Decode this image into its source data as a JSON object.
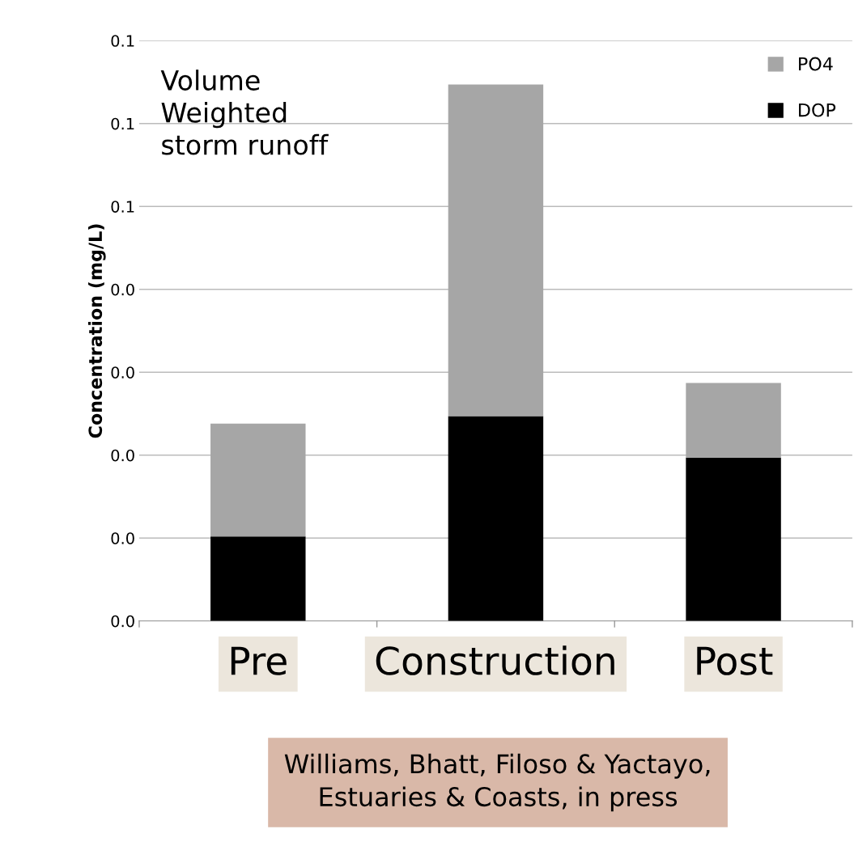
{
  "chart_data": {
    "type": "bar",
    "stacked": true,
    "ylabel": "Concentration (mg/L)",
    "categories": [
      "Pre",
      "Construction",
      "Post"
    ],
    "series": [
      {
        "name": "DOP",
        "color": "#000000",
        "values": [
          0.0102,
          0.0247,
          0.0197
        ]
      },
      {
        "name": "PO4",
        "color": "#a6a6a6",
        "values": [
          0.0136,
          0.04,
          0.009
        ]
      }
    ],
    "ylim": [
      0,
      0.07
    ],
    "yticks": [
      {
        "value": 0,
        "label": "0.0"
      },
      {
        "value": 0.01,
        "label": "0.0"
      },
      {
        "value": 0.02,
        "label": "0.0"
      },
      {
        "value": 0.03,
        "label": "0.0"
      },
      {
        "value": 0.04,
        "label": "0.0"
      },
      {
        "value": 0.05,
        "label": "0.1"
      },
      {
        "value": 0.06,
        "label": "0.1"
      },
      {
        "value": 0.07,
        "label": "0.1"
      }
    ],
    "grid": "y",
    "legend": "top right",
    "annotations": [
      "Volume\nWeighted\nstorm runoff",
      "Williams, Bhatt, Filoso & Yactayo,\nEstuaries & Coasts, in press"
    ]
  }
}
